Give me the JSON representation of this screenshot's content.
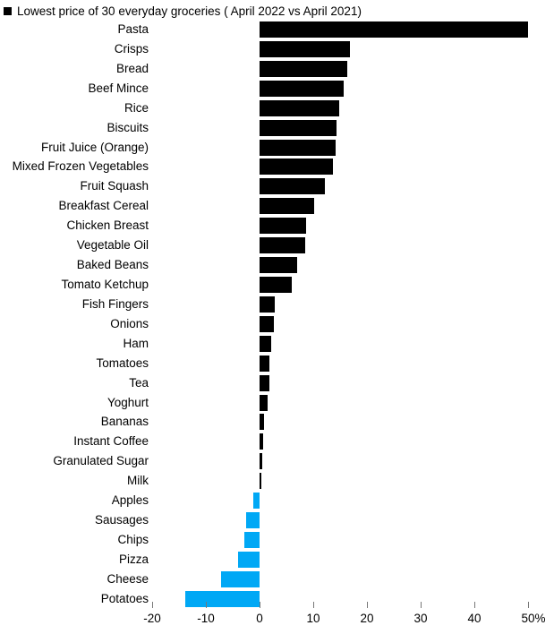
{
  "chart_data": {
    "type": "bar",
    "orientation": "horizontal",
    "title": "Lowest price of 30 everyday groceries ( April 2022 vs April 2021)",
    "legend_marker": "black-square",
    "categories": [
      "Pasta",
      "Crisps",
      "Bread",
      "Beef Mince",
      "Rice",
      "Biscuits",
      "Fruit Juice (Orange)",
      "Mixed Frozen Vegetables",
      "Fruit Squash",
      "Breakfast Cereal",
      "Chicken Breast",
      "Vegetable Oil",
      "Baked Beans",
      "Tomato Ketchup",
      "Fish Fingers",
      "Onions",
      "Ham",
      "Tomatoes",
      "Tea",
      "Yoghurt",
      "Bananas",
      "Instant Coffee",
      "Granulated Sugar",
      "Milk",
      "Apples",
      "Sausages",
      "Chips",
      "Pizza",
      "Cheese",
      "Potatoes"
    ],
    "values": [
      50,
      16.8,
      16.4,
      15.6,
      14.9,
      14.4,
      14.2,
      13.7,
      12.2,
      10.2,
      8.7,
      8.5,
      7,
      6,
      2.8,
      2.6,
      2.1,
      1.9,
      1.8,
      1.5,
      0.8,
      0.7,
      0.5,
      0.2,
      -1.2,
      -2.5,
      -2.8,
      -4,
      -7.2,
      -13.8
    ],
    "value_unit": "%",
    "xlabel": "",
    "ylabel": "",
    "xlim": [
      -20,
      55
    ],
    "x_ticks": [
      -20,
      -10,
      0,
      10,
      20,
      30,
      40,
      50
    ],
    "x_tick_labels": [
      "-20",
      "-10",
      "0",
      "10",
      "20",
      "30",
      "40",
      "50%"
    ],
    "grid": "off",
    "legend_position": "none",
    "positive_color": "#000000",
    "negative_color": "#00a8f5",
    "axis_tick_color": "#777777",
    "text_color": "#000000",
    "background_color": "#ffffff"
  }
}
